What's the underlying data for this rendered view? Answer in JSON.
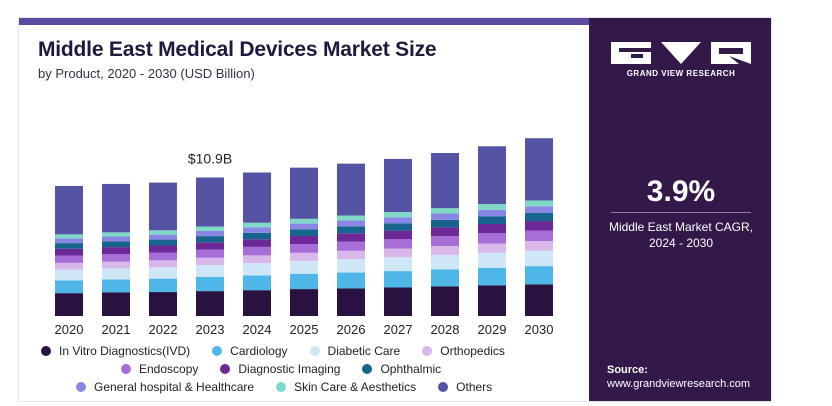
{
  "header": {
    "title": "Middle East Medical Devices Market Size",
    "subtitle": "by Product, 2020 - 2030 (USD Billion)"
  },
  "sidebar": {
    "logo_text": "GRAND VIEW RESEARCH",
    "cagr_value": "3.9%",
    "cagr_label_line1": "Middle East Market CAGR,",
    "cagr_label_line2": "2024 - 2030",
    "source_label": "Source:",
    "source_url": "www.grandviewresearch.com"
  },
  "colors": {
    "sidebar_bg": "#32194a",
    "accent": "#5a4ba0"
  },
  "chart_data": {
    "type": "bar",
    "stacked": true,
    "categories": [
      "2020",
      "2021",
      "2022",
      "2023",
      "2024",
      "2025",
      "2026",
      "2027",
      "2028",
      "2029",
      "2030"
    ],
    "annotations": [
      {
        "category": "2023",
        "text": "$10.9B"
      }
    ],
    "legend_position": "bottom",
    "grid": false,
    "series": [
      {
        "name": "In Vitro Diagnostics(IVD)",
        "color": "#2a1240",
        "values": [
          1.7,
          1.75,
          1.78,
          1.85,
          1.92,
          2.0,
          2.05,
          2.12,
          2.2,
          2.28,
          2.35
        ]
      },
      {
        "name": "Cardiology",
        "color": "#4fb7e8",
        "values": [
          0.95,
          0.97,
          1.0,
          1.05,
          1.1,
          1.14,
          1.18,
          1.22,
          1.27,
          1.31,
          1.36
        ]
      },
      {
        "name": "Diabetic Care",
        "color": "#cfe6f7",
        "values": [
          0.8,
          0.82,
          0.84,
          0.88,
          0.92,
          0.96,
          1.0,
          1.03,
          1.07,
          1.11,
          1.15
        ]
      },
      {
        "name": "Orthopedics",
        "color": "#d8b7ea",
        "values": [
          0.5,
          0.51,
          0.52,
          0.55,
          0.57,
          0.6,
          0.62,
          0.64,
          0.66,
          0.69,
          0.71
        ]
      },
      {
        "name": "Endoscopy",
        "color": "#a86ed8",
        "values": [
          0.55,
          0.56,
          0.58,
          0.6,
          0.63,
          0.65,
          0.68,
          0.7,
          0.73,
          0.76,
          0.78
        ]
      },
      {
        "name": "Diagnostic Imaging",
        "color": "#6b2896",
        "values": [
          0.5,
          0.51,
          0.52,
          0.55,
          0.57,
          0.6,
          0.62,
          0.64,
          0.66,
          0.69,
          0.71
        ]
      },
      {
        "name": "Ophthalmic",
        "color": "#17658f",
        "values": [
          0.42,
          0.43,
          0.44,
          0.46,
          0.48,
          0.5,
          0.52,
          0.54,
          0.56,
          0.58,
          0.6
        ]
      },
      {
        "name": "General hospital & Healthcare",
        "color": "#8a86e6",
        "values": [
          0.35,
          0.36,
          0.37,
          0.38,
          0.4,
          0.42,
          0.43,
          0.45,
          0.47,
          0.48,
          0.5
        ]
      },
      {
        "name": "Skin Care & Aesthetics",
        "color": "#7fd9c7",
        "values": [
          0.3,
          0.31,
          0.32,
          0.33,
          0.35,
          0.36,
          0.37,
          0.39,
          0.4,
          0.42,
          0.43
        ]
      },
      {
        "name": "Others",
        "color": "#5553a3",
        "values": [
          3.6,
          3.6,
          3.55,
          3.65,
          3.73,
          3.8,
          3.86,
          3.95,
          4.1,
          4.3,
          4.63
        ]
      }
    ],
    "ylim": [
      0,
      14.5
    ]
  }
}
